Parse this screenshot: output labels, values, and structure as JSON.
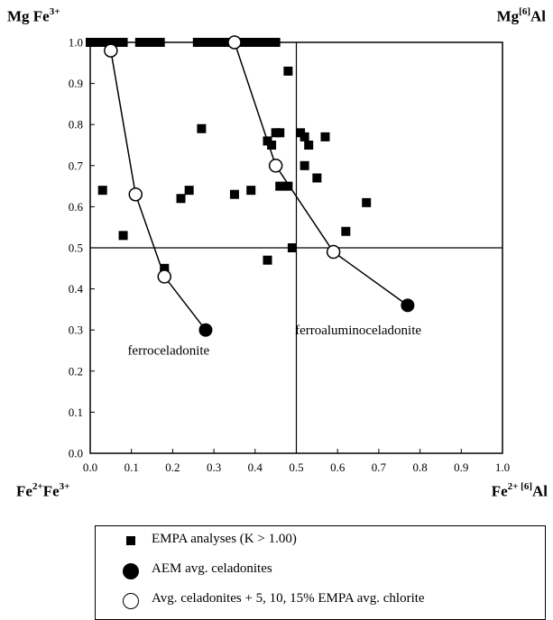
{
  "corners": {
    "top_left": {
      "base": "Mg Fe",
      "sup": "3+"
    },
    "top_right": {
      "base": "Mg",
      "sup": "[6]",
      "tail": "Al"
    },
    "bottom_left": {
      "a": "Fe",
      "a_sup": "2+",
      "b": "Fe",
      "b_sup": "3+"
    },
    "bottom_right": {
      "a": "Fe",
      "a_sup": "2+ [6]",
      "tail": "Al"
    }
  },
  "chart_data": {
    "type": "scatter",
    "xlim": [
      0.0,
      1.0
    ],
    "ylim": [
      0.0,
      1.0
    ],
    "xticks": [
      "0.0",
      "0.1",
      "0.2",
      "0.3",
      "0.4",
      "0.5",
      "0.6",
      "0.7",
      "0.8",
      "0.9",
      "1.0"
    ],
    "yticks": [
      "0.0",
      "0.1",
      "0.2",
      "0.3",
      "0.4",
      "0.5",
      "0.6",
      "0.7",
      "0.8",
      "0.9",
      "1.0"
    ],
    "reference_lines": {
      "x": 0.5,
      "y": 0.5
    },
    "series": [
      {
        "name": "EMPA analyses (K > 1.00)",
        "marker": "filled-square",
        "points": [
          [
            0.0,
            1.0
          ],
          [
            0.02,
            1.0
          ],
          [
            0.03,
            1.0
          ],
          [
            0.04,
            1.0
          ],
          [
            0.05,
            1.0
          ],
          [
            0.07,
            1.0
          ],
          [
            0.08,
            1.0
          ],
          [
            0.12,
            1.0
          ],
          [
            0.13,
            1.0
          ],
          [
            0.15,
            1.0
          ],
          [
            0.17,
            1.0
          ],
          [
            0.26,
            1.0
          ],
          [
            0.27,
            1.0
          ],
          [
            0.28,
            1.0
          ],
          [
            0.29,
            1.0
          ],
          [
            0.31,
            1.0
          ],
          [
            0.32,
            1.0
          ],
          [
            0.33,
            1.0
          ],
          [
            0.36,
            1.0
          ],
          [
            0.37,
            1.0
          ],
          [
            0.39,
            1.0
          ],
          [
            0.4,
            1.0
          ],
          [
            0.42,
            1.0
          ],
          [
            0.43,
            1.0
          ],
          [
            0.44,
            1.0
          ],
          [
            0.45,
            1.0
          ],
          [
            0.48,
            0.93
          ],
          [
            0.27,
            0.79
          ],
          [
            0.43,
            0.76
          ],
          [
            0.44,
            0.75
          ],
          [
            0.45,
            0.78
          ],
          [
            0.46,
            0.78
          ],
          [
            0.51,
            0.78
          ],
          [
            0.52,
            0.77
          ],
          [
            0.53,
            0.75
          ],
          [
            0.57,
            0.77
          ],
          [
            0.52,
            0.7
          ],
          [
            0.55,
            0.67
          ],
          [
            0.46,
            0.65
          ],
          [
            0.48,
            0.65
          ],
          [
            0.03,
            0.64
          ],
          [
            0.24,
            0.64
          ],
          [
            0.35,
            0.63
          ],
          [
            0.39,
            0.64
          ],
          [
            0.22,
            0.62
          ],
          [
            0.67,
            0.61
          ],
          [
            0.08,
            0.53
          ],
          [
            0.62,
            0.54
          ],
          [
            0.49,
            0.5
          ],
          [
            0.43,
            0.47
          ],
          [
            0.18,
            0.45
          ],
          [
            0.18,
            0.44
          ]
        ]
      },
      {
        "name": "AEM avg. celadonites",
        "marker": "filled-circle",
        "points": [
          [
            0.28,
            0.3
          ],
          [
            0.77,
            0.36
          ]
        ]
      },
      {
        "name": "Avg. celadonites + 5, 10, 15% EMPA avg. chlorite",
        "marker": "open-circle",
        "points": [
          [
            0.05,
            0.98
          ],
          [
            0.11,
            0.63
          ],
          [
            0.18,
            0.43
          ],
          [
            0.35,
            1.0
          ],
          [
            0.45,
            0.7
          ],
          [
            0.59,
            0.49
          ]
        ]
      }
    ],
    "trend_lines": [
      {
        "points": [
          [
            0.05,
            0.98
          ],
          [
            0.11,
            0.63
          ],
          [
            0.18,
            0.43
          ],
          [
            0.28,
            0.3
          ]
        ]
      },
      {
        "points": [
          [
            0.35,
            1.0
          ],
          [
            0.45,
            0.7
          ],
          [
            0.59,
            0.49
          ],
          [
            0.77,
            0.36
          ]
        ]
      }
    ],
    "annotations": [
      {
        "text": "ferroceladonite",
        "x": 0.19,
        "y": 0.24
      },
      {
        "text": "ferroaluminoceladonite",
        "x": 0.65,
        "y": 0.29
      }
    ]
  },
  "legend": {
    "items": [
      {
        "label": "EMPA analyses (K > 1.00)"
      },
      {
        "label": "AEM avg. celadonites"
      },
      {
        "label": "Avg. celadonites + 5, 10, 15% EMPA avg. chlorite"
      }
    ]
  }
}
